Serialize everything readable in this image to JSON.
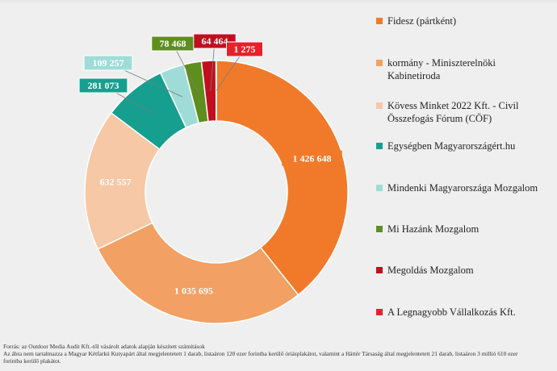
{
  "chart_data": {
    "type": "donut",
    "title": "",
    "series": [
      {
        "name": "Fidesz (pártként)",
        "value": 1426648,
        "label": "1 426 648",
        "color": "#f07a2a"
      },
      {
        "name": "kormány - Miniszterelnöki Kabinetiroda",
        "value": 1035695,
        "label": "1 035 695",
        "color": "#f2a063"
      },
      {
        "name": "Kövess Minket 2022 Kft.  - Civil Összefogás Fórum (CÖF)",
        "value": 632557,
        "label": "632 557",
        "color": "#f6c8a6"
      },
      {
        "name": "Egységben Magyarországért.hu",
        "value": 281073,
        "label": "281 073",
        "color": "#169f8f"
      },
      {
        "name": "Mindenki Magyarországa Mozgalom",
        "value": 109257,
        "label": "109 257",
        "color": "#9fdcd7"
      },
      {
        "name": "Mi Hazánk Mozgalom",
        "value": 78468,
        "label": "78 468",
        "color": "#5e8f1e"
      },
      {
        "name": "Megoldás Mozgalom",
        "value": 64464,
        "label": "64 464",
        "color": "#c01020"
      },
      {
        "name": "A Legnagyobb Vállalkozás Kft.",
        "value": 1275,
        "label": "1 275",
        "color": "#e8202a"
      }
    ],
    "legend_position": "right"
  },
  "footer": {
    "line1": "Forrás: az Outdoor Media Audit Kft.-től vásárolt adatok alapján készített számítások",
    "line2": "Az ábra nem tartalmazza a Magyar Kétfarkú Kutyapárt által megjelentetett 1 darab, listaáron 120 ezer forintba kerülő óriásplakátot, valamint a Háttér Társaság által megjelentetett 21 darab, listaáron 3 millió 610 ezer",
    "line3": "forintba kerülő plakátot."
  }
}
